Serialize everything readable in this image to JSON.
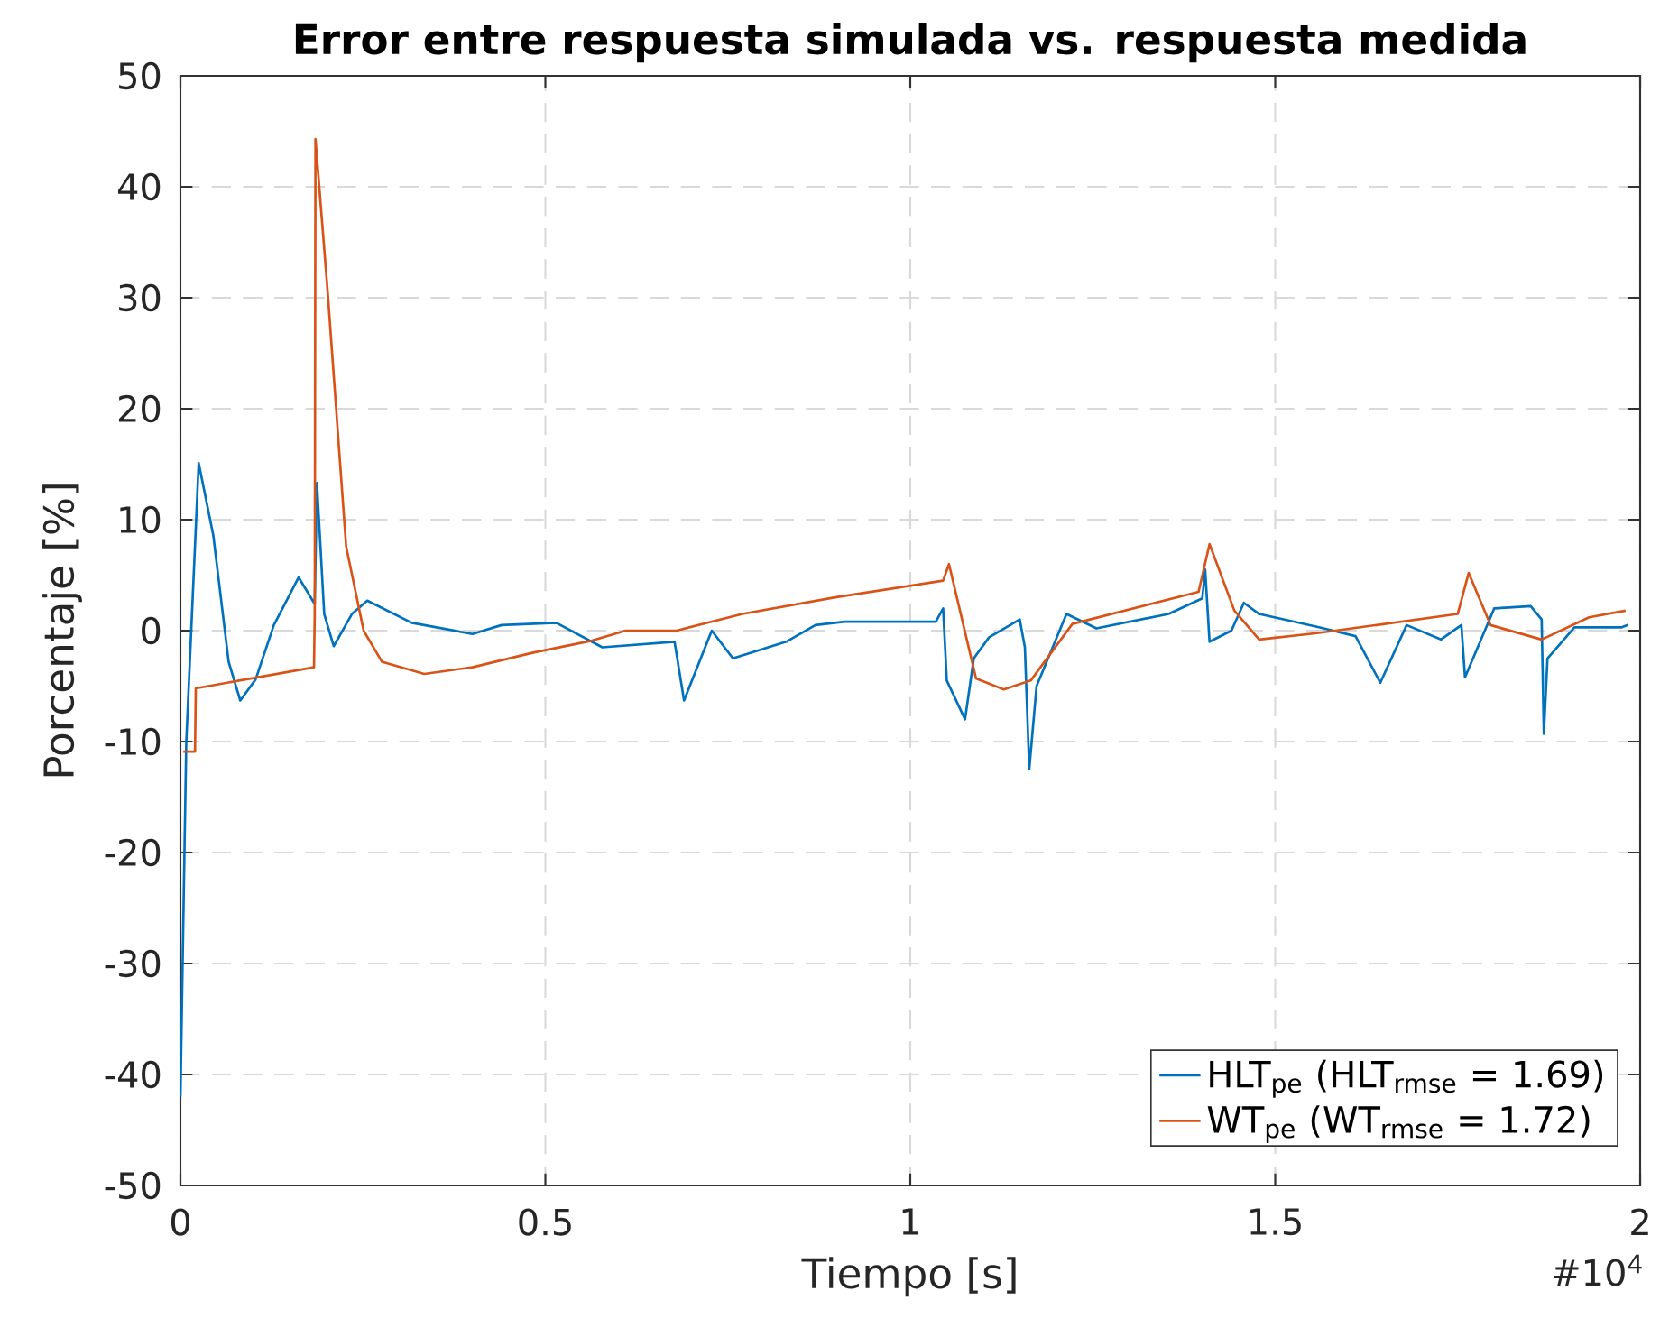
{
  "chart_data": {
    "type": "line",
    "title": "Error entre respuesta simulada vs. respuesta medida",
    "xlabel": "Tiempo [s]",
    "ylabel": "Porcentaje [%]",
    "annotations": [
      "#10$^{4}$"
    ],
    "xlim": [
      0,
      2
    ],
    "xticks": [
      0,
      0.5,
      1,
      1.5,
      2
    ],
    "ylim": [
      -50,
      50
    ],
    "yticks": [
      -50,
      -40,
      -30,
      -20,
      -10,
      0,
      10,
      20,
      30,
      40,
      50
    ],
    "grid": true,
    "legend": "bottom right",
    "series": [
      {
        "name": "HLT$_{pe}$ (HLT$_{rmse}$ = 1.69)",
        "color": "#0072bd",
        "x": [
          0,
          0.008,
          0.025,
          0.045,
          0.066,
          0.082,
          0.103,
          0.128,
          0.162,
          0.184,
          0.187,
          0.197,
          0.21,
          0.235,
          0.256,
          0.317,
          0.4,
          0.44,
          0.515,
          0.578,
          0.677,
          0.69,
          0.728,
          0.757,
          0.83,
          0.87,
          0.91,
          1.035,
          1.045,
          1.05,
          1.075,
          1.087,
          1.108,
          1.15,
          1.157,
          1.163,
          1.173,
          1.214,
          1.255,
          1.354,
          1.4,
          1.404,
          1.41,
          1.44,
          1.457,
          1.478,
          1.56,
          1.61,
          1.644,
          1.68,
          1.727,
          1.755,
          1.76,
          1.8,
          1.85,
          1.865,
          1.868,
          1.873,
          1.91,
          1.975,
          1.983
        ],
        "values": [
          -42,
          -10,
          15.1,
          8.6,
          -2.8,
          -6.3,
          -4.4,
          0.5,
          4.8,
          2.4,
          13.3,
          1.5,
          -1.4,
          1.5,
          2.7,
          0.7,
          -0.3,
          0.5,
          0.7,
          -1.5,
          -1,
          -6.3,
          0,
          -2.5,
          -1,
          0.5,
          0.8,
          0.8,
          2,
          -4.5,
          -8,
          -2.5,
          -0.6,
          1,
          -1.5,
          -12.5,
          -5,
          1.5,
          0.2,
          1.5,
          2.9,
          5.5,
          -1,
          0,
          2.5,
          1.5,
          0.3,
          -0.5,
          -4.7,
          0.5,
          -0.8,
          0.5,
          -4.2,
          2,
          2.2,
          1,
          -9.3,
          -2.5,
          0.3,
          0.3,
          0.5
        ]
      },
      {
        "name": "WT$_{pe}$ (WT$_{rmse}$ = 1.72)",
        "color": "#d95319",
        "x": [
          0.004,
          0.02,
          0.021,
          0.183,
          0.184,
          0.185,
          0.202,
          0.227,
          0.251,
          0.276,
          0.334,
          0.4,
          0.482,
          0.564,
          0.61,
          0.68,
          0.77,
          0.897,
          1.045,
          1.053,
          1.09,
          1.128,
          1.165,
          1.222,
          1.395,
          1.41,
          1.444,
          1.478,
          1.56,
          1.75,
          1.765,
          1.795,
          1.865,
          1.93,
          1.98
        ],
        "values": [
          -10.9,
          -10.9,
          -5.2,
          -3.3,
          1.5,
          44.3,
          30.3,
          7.6,
          0,
          -2.8,
          -3.9,
          -3.3,
          -2,
          -0.9,
          0,
          0,
          1.5,
          3,
          4.5,
          6,
          -4.3,
          -5.3,
          -4.5,
          0.6,
          3.5,
          7.8,
          1.8,
          -0.8,
          -0.2,
          1.5,
          5.2,
          0.5,
          -0.8,
          1.2,
          1.8
        ]
      }
    ]
  }
}
